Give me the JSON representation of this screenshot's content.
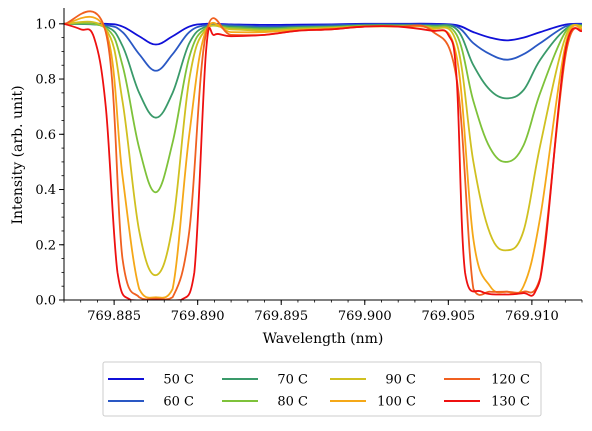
{
  "chart_data": {
    "type": "line",
    "title": "",
    "xlabel": "Wavelength (nm)",
    "ylabel": "Intensity (arb. unit)",
    "xlim": [
      769.882,
      769.913
    ],
    "ylim": [
      0.0,
      1.05
    ],
    "xticks": [
      769.885,
      769.89,
      769.895,
      769.9,
      769.905,
      769.91
    ],
    "xtick_labels": [
      "769.885",
      "769.890",
      "769.895",
      "769.900",
      "769.905",
      "769.910"
    ],
    "yticks": [
      0.0,
      0.2,
      0.4,
      0.6,
      0.8,
      1.0
    ],
    "ytick_labels": [
      "0.0",
      "0.2",
      "0.4",
      "0.6",
      "0.8",
      "1.0"
    ],
    "grid": false,
    "legend_position": "below-center",
    "series": [
      {
        "name": "50 C",
        "color": "#1010d8",
        "x": [
          769.882,
          769.8845,
          769.8855,
          769.8865,
          769.8875,
          769.8885,
          769.8895,
          769.8905,
          769.892,
          769.894,
          769.896,
          769.898,
          769.9,
          769.902,
          769.904,
          769.9055,
          769.9065,
          769.9075,
          769.9085,
          769.9095,
          769.9105,
          769.912,
          769.913
        ],
        "y": [
          1.0,
          1.0,
          0.99,
          0.955,
          0.925,
          0.955,
          0.99,
          1.0,
          0.998,
          0.996,
          0.997,
          0.998,
          1.0,
          1.0,
          1.0,
          0.995,
          0.97,
          0.95,
          0.94,
          0.95,
          0.97,
          0.997,
          1.0
        ]
      },
      {
        "name": "60 C",
        "color": "#2a58c4",
        "x": [
          769.882,
          769.8845,
          769.8855,
          769.8865,
          769.8875,
          769.8885,
          769.8895,
          769.8905,
          769.892,
          769.894,
          769.896,
          769.898,
          769.9,
          769.902,
          769.904,
          769.9055,
          769.9065,
          769.9075,
          769.9085,
          769.9095,
          769.9105,
          769.912,
          769.913
        ],
        "y": [
          1.0,
          0.995,
          0.97,
          0.89,
          0.83,
          0.89,
          0.97,
          0.995,
          0.995,
          0.99,
          0.992,
          0.995,
          0.998,
          0.998,
          0.997,
          0.99,
          0.93,
          0.89,
          0.87,
          0.89,
          0.93,
          0.99,
          0.998
        ]
      },
      {
        "name": "70 C",
        "color": "#3a9a6a",
        "x": [
          769.882,
          769.8845,
          769.8855,
          769.8865,
          769.8875,
          769.8885,
          769.8895,
          769.8905,
          769.892,
          769.894,
          769.896,
          769.898,
          769.9,
          769.902,
          769.904,
          769.9055,
          769.9065,
          769.9075,
          769.9085,
          769.9095,
          769.9105,
          769.912,
          769.913
        ],
        "y": [
          1.0,
          0.99,
          0.92,
          0.75,
          0.66,
          0.75,
          0.93,
          0.99,
          0.99,
          0.985,
          0.988,
          0.99,
          0.995,
          0.995,
          0.993,
          0.98,
          0.85,
          0.76,
          0.73,
          0.76,
          0.87,
          0.98,
          0.995
        ]
      },
      {
        "name": "80 C",
        "color": "#7ec23a",
        "x": [
          769.882,
          769.8845,
          769.8855,
          769.8865,
          769.8875,
          769.8885,
          769.8895,
          769.8905,
          769.892,
          769.894,
          769.896,
          769.898,
          769.9,
          769.902,
          769.904,
          769.9055,
          769.9065,
          769.9075,
          769.9085,
          769.9095,
          769.9105,
          769.912,
          769.913
        ],
        "y": [
          1.0,
          0.985,
          0.85,
          0.55,
          0.39,
          0.57,
          0.88,
          0.985,
          0.985,
          0.98,
          0.985,
          0.988,
          0.993,
          0.993,
          0.99,
          0.96,
          0.72,
          0.55,
          0.5,
          0.56,
          0.75,
          0.97,
          0.993
        ]
      },
      {
        "name": "90 C",
        "color": "#d0c020",
        "x": [
          769.882,
          769.8845,
          769.8855,
          769.8865,
          769.8875,
          769.8885,
          769.8895,
          769.8905,
          769.892,
          769.894,
          769.896,
          769.898,
          769.9,
          769.902,
          769.904,
          769.9055,
          769.9065,
          769.9075,
          769.9085,
          769.9095,
          769.9105,
          769.912,
          769.913
        ],
        "y": [
          1.0,
          0.98,
          0.72,
          0.25,
          0.09,
          0.27,
          0.8,
          0.98,
          0.98,
          0.975,
          0.98,
          0.985,
          0.99,
          0.99,
          0.985,
          0.93,
          0.5,
          0.24,
          0.18,
          0.25,
          0.56,
          0.95,
          0.99
        ]
      },
      {
        "name": "100 C",
        "color": "#f5a818",
        "x": [
          769.882,
          769.8845,
          769.8855,
          769.8865,
          769.8875,
          769.8885,
          769.8895,
          769.8905,
          769.892,
          769.894,
          769.896,
          769.898,
          769.9,
          769.902,
          769.904,
          769.9055,
          769.9065,
          769.9075,
          769.9085,
          769.9095,
          769.9105,
          769.912,
          769.913
        ],
        "y": [
          1.0,
          0.975,
          0.45,
          0.04,
          0.01,
          0.04,
          0.6,
          0.975,
          0.97,
          0.97,
          0.978,
          0.983,
          0.99,
          0.99,
          0.98,
          0.88,
          0.22,
          0.05,
          0.03,
          0.05,
          0.3,
          0.92,
          0.985
        ]
      },
      {
        "name": "120 C",
        "color": "#f06020",
        "x": [
          769.882,
          769.8845,
          769.8855,
          769.8865,
          769.8875,
          769.8885,
          769.8895,
          769.8905,
          769.892,
          769.894,
          769.896,
          769.898,
          769.9,
          769.902,
          769.904,
          769.9055,
          769.9065,
          769.9075,
          769.9085,
          769.9095,
          769.9105,
          769.912,
          769.913
        ],
        "y": [
          1.0,
          0.97,
          0.15,
          0.01,
          0.005,
          0.01,
          0.25,
          0.965,
          0.96,
          0.96,
          0.975,
          0.98,
          0.99,
          0.99,
          0.975,
          0.8,
          0.04,
          0.03,
          0.03,
          0.03,
          0.08,
          0.88,
          0.98
        ]
      },
      {
        "name": "130 C",
        "color": "#ee1010",
        "x": [
          769.882,
          769.883,
          769.8838,
          769.8845,
          769.8852,
          769.886,
          769.8875,
          769.889,
          769.8898,
          769.8905,
          769.891,
          769.892,
          769.894,
          769.896,
          769.898,
          769.9,
          769.902,
          769.904,
          769.905,
          769.9055,
          769.906,
          769.907,
          769.9085,
          769.9095,
          769.9102,
          769.9108,
          769.912,
          769.913
        ],
        "y": [
          1.0,
          0.98,
          0.95,
          0.7,
          0.1,
          0.0,
          0.0,
          0.0,
          0.1,
          0.9,
          0.96,
          0.955,
          0.96,
          0.975,
          0.98,
          0.99,
          0.99,
          0.975,
          0.96,
          0.8,
          0.1,
          0.03,
          0.02,
          0.025,
          0.03,
          0.2,
          0.9,
          0.975
        ]
      }
    ]
  }
}
